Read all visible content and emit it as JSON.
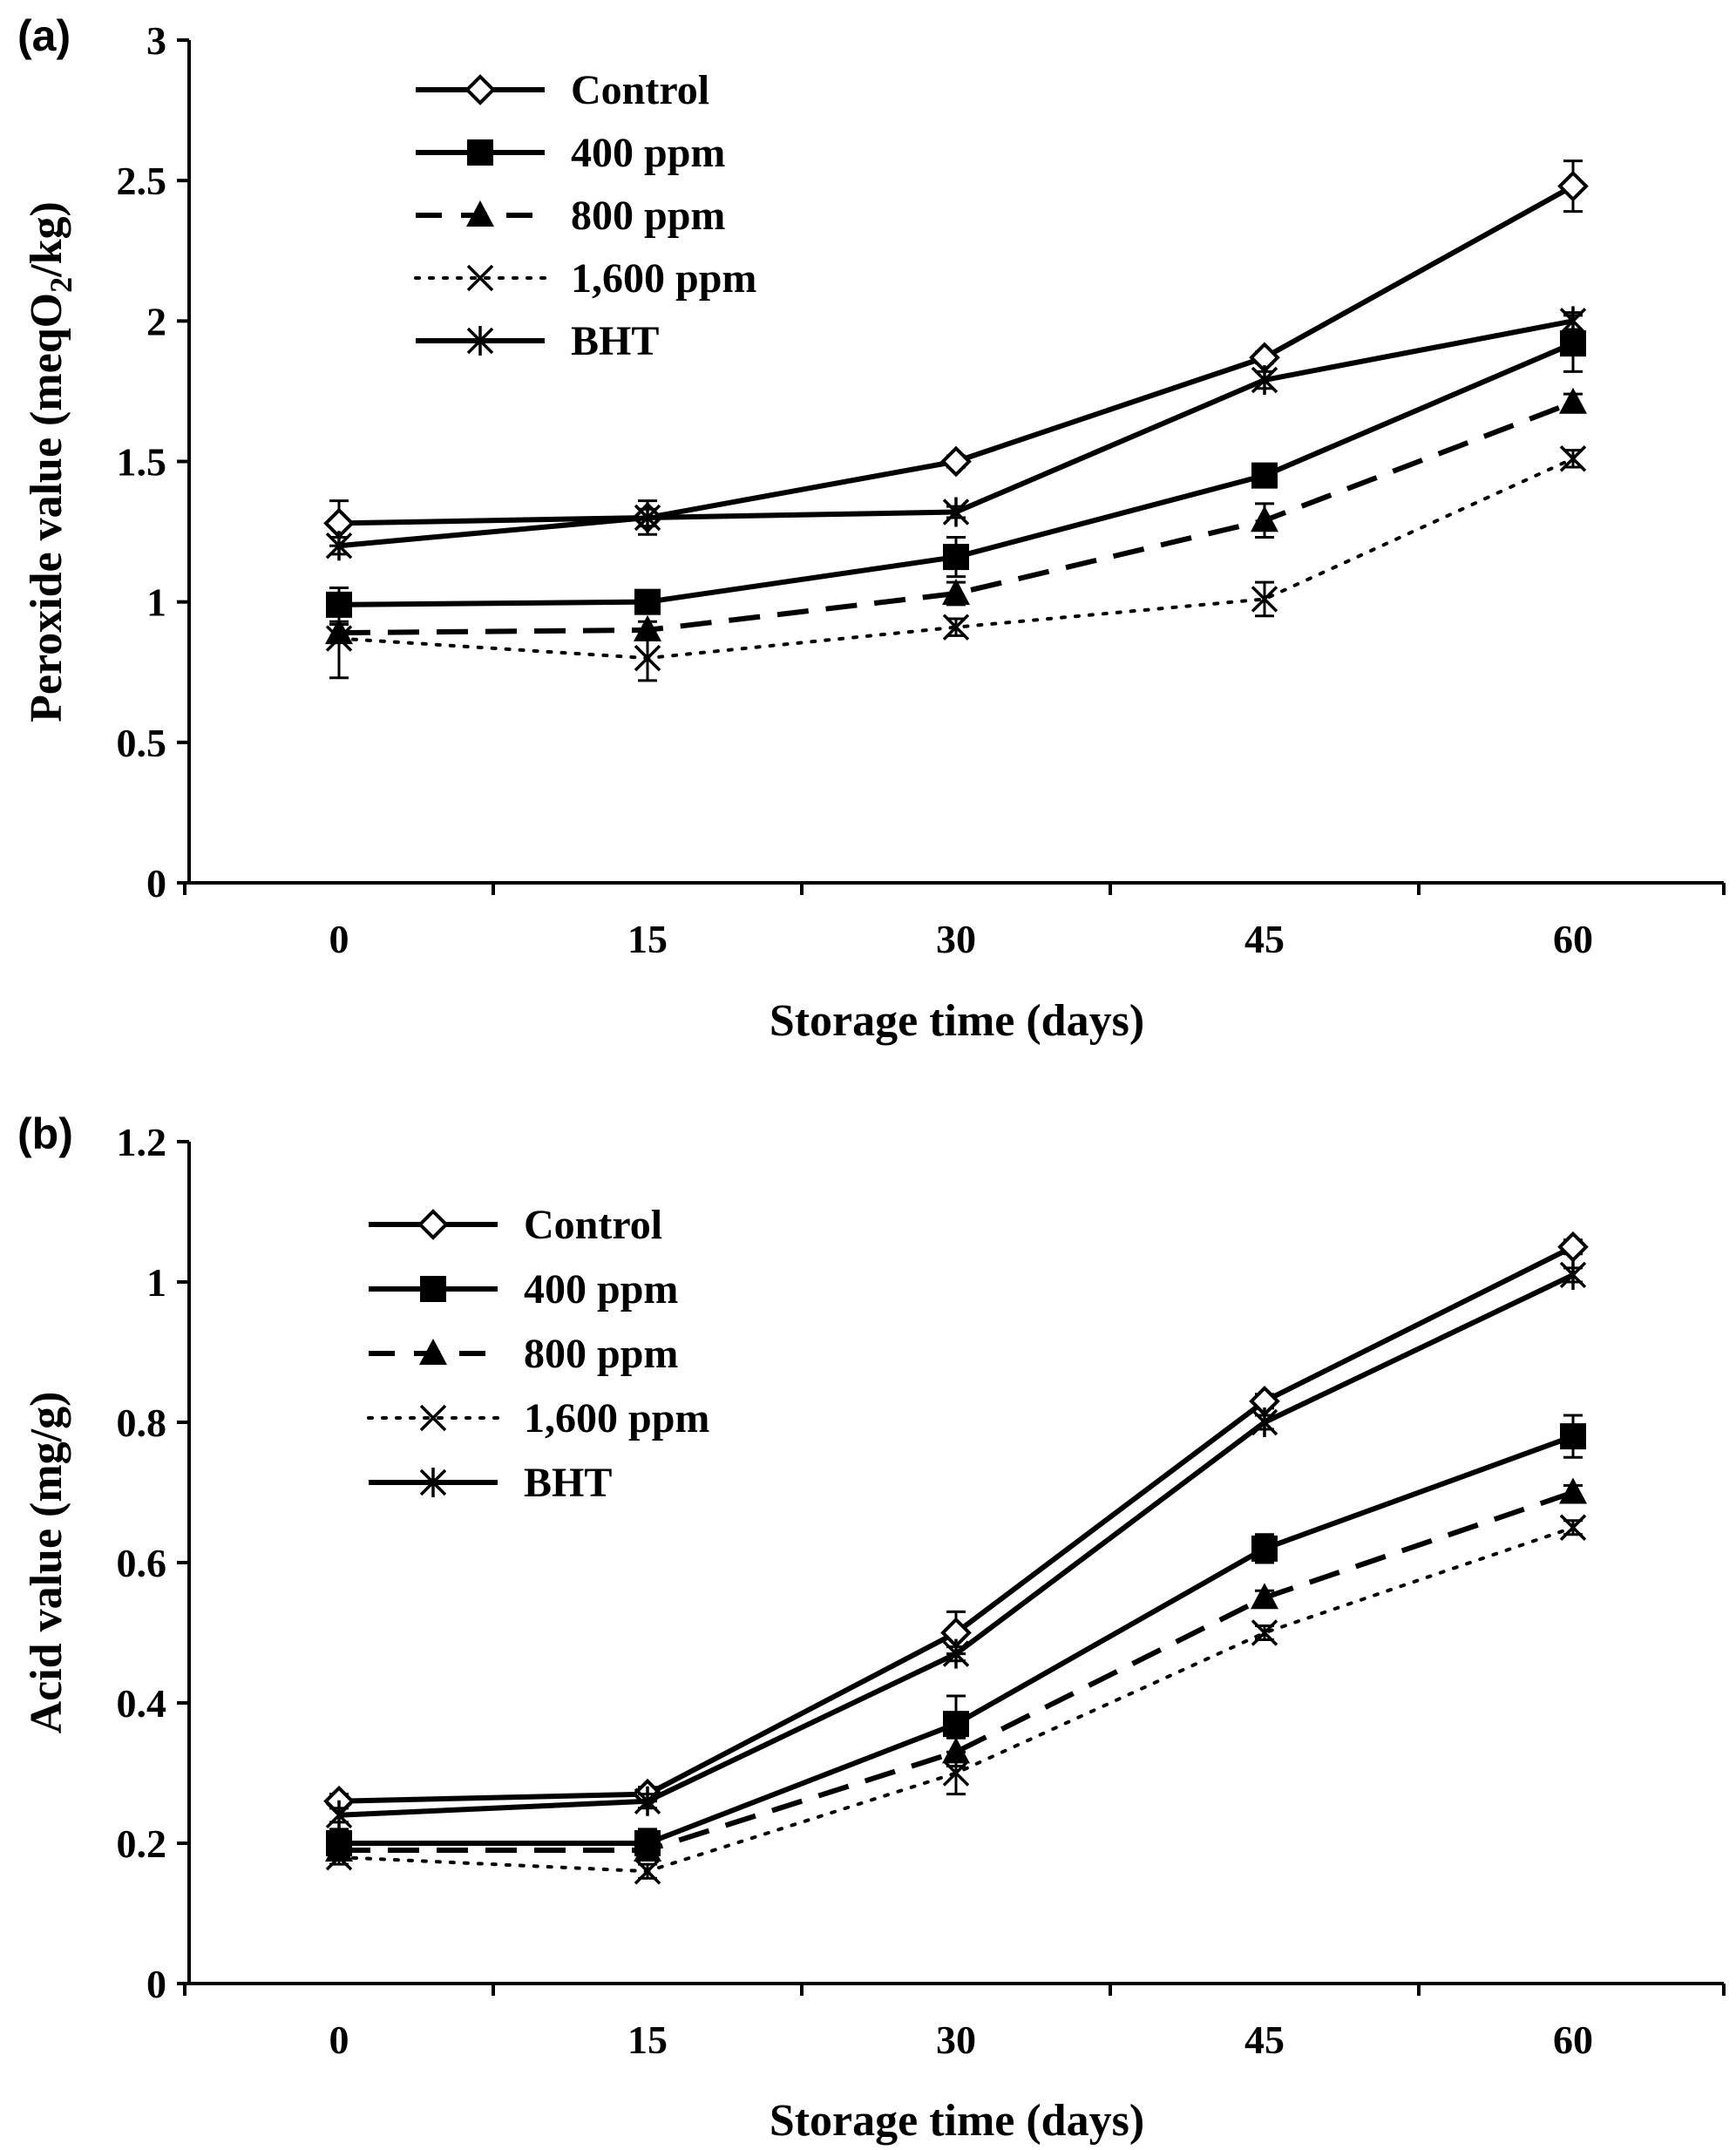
{
  "chart_data": [
    {
      "type": "line",
      "panel_label": "(a)",
      "title": "",
      "xlabel": "Storage time (days)",
      "ylabel": {
        "prefix": "Peroxide value (meqO",
        "subscript": "2",
        "suffix": "/kg)"
      },
      "x": [
        0,
        15,
        30,
        45,
        60
      ],
      "xticks": [
        "0",
        "15",
        "30",
        "45",
        "60"
      ],
      "yticks": [
        "0",
        "0.5",
        "1",
        "1.5",
        "2",
        "2.5",
        "3"
      ],
      "ylim": [
        0,
        3
      ],
      "legend_position": "top-left",
      "series": [
        {
          "name": "Control",
          "marker": "diamond",
          "line": "solid",
          "values": [
            1.28,
            1.3,
            1.5,
            1.87,
            2.48
          ],
          "errors": [
            0.08,
            0.06,
            0.02,
            0.02,
            0.09
          ]
        },
        {
          "name": "400 ppm",
          "marker": "square",
          "line": "solid",
          "values": [
            0.99,
            1.0,
            1.16,
            1.45,
            1.92
          ],
          "errors": [
            0.06,
            0.03,
            0.07,
            0.04,
            0.1
          ]
        },
        {
          "name": "800 ppm",
          "marker": "triangle",
          "line": "dashed",
          "values": [
            0.89,
            0.9,
            1.03,
            1.29,
            1.71
          ],
          "errors": [
            0.03,
            0.03,
            0.04,
            0.06,
            0.03
          ]
        },
        {
          "name": "1,600 ppm",
          "marker": "x",
          "line": "dotted",
          "values": [
            0.87,
            0.8,
            0.91,
            1.01,
            1.51
          ],
          "errors": [
            0.14,
            0.08,
            0.03,
            0.06,
            0.03
          ]
        },
        {
          "name": "BHT",
          "marker": "asterisk",
          "line": "solid",
          "values": [
            1.2,
            1.3,
            1.32,
            1.79,
            2.0
          ],
          "errors": [
            0.03,
            0.03,
            0.02,
            0.03,
            0.03
          ]
        }
      ]
    },
    {
      "type": "line",
      "panel_label": "(b)",
      "title": "",
      "xlabel": "Storage time (days)",
      "ylabel": {
        "prefix": "Acid value (mg/g)",
        "subscript": "",
        "suffix": ""
      },
      "x": [
        0,
        15,
        30,
        45,
        60
      ],
      "xticks": [
        "0",
        "15",
        "30",
        "45",
        "60"
      ],
      "yticks": [
        "0",
        "0.2",
        "0.4",
        "0.6",
        "0.8",
        "1",
        "1.2"
      ],
      "ylim": [
        0,
        1.2
      ],
      "legend_position": "top-left",
      "series": [
        {
          "name": "Control",
          "marker": "diamond",
          "line": "solid",
          "values": [
            0.26,
            0.27,
            0.5,
            0.83,
            1.05
          ],
          "errors": [
            0.01,
            0.01,
            0.03,
            0.01,
            0.01
          ]
        },
        {
          "name": "400 ppm",
          "marker": "square",
          "line": "solid",
          "values": [
            0.2,
            0.2,
            0.37,
            0.62,
            0.78
          ],
          "errors": [
            0.02,
            0.02,
            0.04,
            0.02,
            0.03
          ]
        },
        {
          "name": "800 ppm",
          "marker": "triangle",
          "line": "dashed",
          "values": [
            0.19,
            0.19,
            0.33,
            0.55,
            0.7
          ],
          "errors": [
            0.01,
            0.01,
            0.02,
            0.01,
            0.01
          ]
        },
        {
          "name": "1,600 ppm",
          "marker": "x",
          "line": "dotted",
          "values": [
            0.18,
            0.16,
            0.3,
            0.5,
            0.65
          ],
          "errors": [
            0.01,
            0.01,
            0.03,
            0.01,
            0.01
          ]
        },
        {
          "name": "BHT",
          "marker": "asterisk",
          "line": "solid",
          "values": [
            0.24,
            0.26,
            0.47,
            0.8,
            1.01
          ],
          "errors": [
            0.01,
            0.01,
            0.01,
            0.01,
            0.01
          ]
        }
      ]
    }
  ]
}
